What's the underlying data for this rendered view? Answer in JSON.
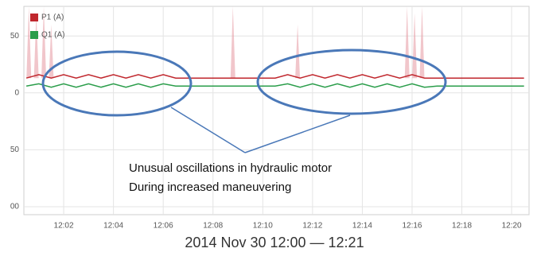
{
  "chart_data": {
    "type": "line",
    "subtitle": "2014 Nov 30 12:00 — 12:21",
    "annotations": [
      "Unusual oscillations in hydraulic motor",
      "During increased maneuvering"
    ],
    "x": [
      0.5,
      1,
      1.5,
      2,
      2.5,
      3,
      3.5,
      4,
      4.5,
      5,
      5.5,
      6,
      6.5,
      7,
      7.5,
      8,
      8.5,
      9,
      9.5,
      10,
      10.5,
      11,
      11.5,
      12,
      12.5,
      13,
      13.5,
      14,
      14.5,
      15,
      15.5,
      16,
      16.5,
      17,
      17.5,
      18,
      18.5,
      19,
      19.5,
      20,
      20.5
    ],
    "series": [
      {
        "name": "P1 (A)",
        "color": "#c0272d",
        "values": [
          13,
          16,
          13,
          16,
          13,
          16,
          13,
          16,
          13,
          16,
          13,
          16,
          13,
          13,
          13,
          13,
          13,
          13,
          13,
          13,
          13,
          16,
          13,
          16,
          13,
          16,
          13,
          16,
          13,
          16,
          13,
          16,
          13,
          13,
          13,
          13,
          13,
          13,
          13,
          13,
          13
        ]
      },
      {
        "name": "Q1 (A)",
        "color": "#2a9d4a",
        "values": [
          6,
          8,
          5,
          8,
          5,
          8,
          5,
          8,
          5,
          8,
          5,
          8,
          6,
          6,
          6,
          6,
          6,
          6,
          6,
          6,
          6,
          8,
          5,
          8,
          5,
          8,
          5,
          8,
          5,
          8,
          5,
          8,
          5,
          6,
          6,
          6,
          6,
          6,
          6,
          6,
          6
        ]
      }
    ],
    "spikes": {
      "color": "#e8a0a8",
      "x": [
        0.6,
        0.9,
        1.2,
        1.5,
        8.8,
        11.4,
        15.8,
        16.1,
        16.4
      ],
      "values": [
        76,
        70,
        76,
        60,
        76,
        60,
        76,
        70,
        76
      ]
    },
    "xlim": [
      0.4,
      20.7
    ],
    "xticks": [
      {
        "value": 2,
        "label": "12:02"
      },
      {
        "value": 4,
        "label": "12:04"
      },
      {
        "value": 6,
        "label": "12:06"
      },
      {
        "value": 8,
        "label": "12:08"
      },
      {
        "value": 10,
        "label": "12:10"
      },
      {
        "value": 12,
        "label": "12:12"
      },
      {
        "value": 14,
        "label": "12:14"
      },
      {
        "value": 16,
        "label": "12:16"
      },
      {
        "value": 18,
        "label": "12:18"
      },
      {
        "value": 20,
        "label": "12:20"
      }
    ],
    "ylim": [
      -107,
      76
    ],
    "yticks": [
      50,
      0,
      {
        "value": -50,
        "label": "50"
      },
      {
        "value": -100,
        "label": "00"
      }
    ],
    "grid": true
  }
}
